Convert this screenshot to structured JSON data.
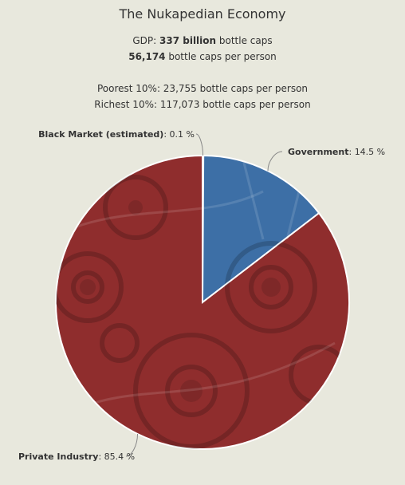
{
  "title": "The Nukapedian Economy",
  "gdp": {
    "prefix": "GDP: ",
    "value": "337 billion",
    "suffix": " bottle caps"
  },
  "per_person": {
    "value": "56,174",
    "suffix": " bottle caps per person"
  },
  "poorest": "Poorest 10%: 23,755 bottle caps per person",
  "richest": "Richest 10%: 117,073 bottle caps per person",
  "colors": {
    "background": "#e8e8dd",
    "government": "#3d6fa6",
    "private_industry": "#8f2d2d",
    "black_market": "#6b6b6b"
  },
  "chart_data": {
    "type": "pie",
    "title": "The Nukapedian Economy",
    "slices": [
      {
        "name": "Black Market (estimated)",
        "value": 0.1,
        "label": "0.1 %",
        "color": "#6b6b6b"
      },
      {
        "name": "Government",
        "value": 14.5,
        "label": "14.5 %",
        "color": "#3d6fa6"
      },
      {
        "name": "Private Industry",
        "value": 85.4,
        "label": "85.4 %",
        "color": "#8f2d2d"
      }
    ],
    "legend": "none"
  }
}
